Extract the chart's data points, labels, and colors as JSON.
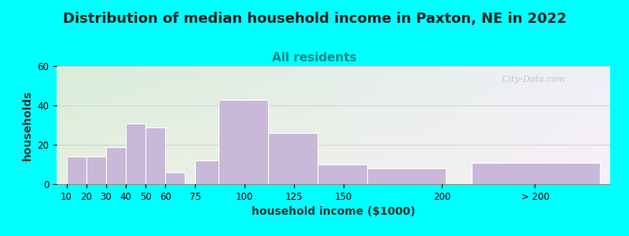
{
  "title": "Distribution of median household income in Paxton, NE in 2022",
  "subtitle": "All residents",
  "xlabel": "household income ($1000)",
  "ylabel": "households",
  "bar_labels": [
    "10",
    "20",
    "30",
    "40",
    "50",
    "60",
    "75",
    "100",
    "125",
    "150",
    "200",
    "> 200"
  ],
  "bar_values": [
    14,
    14,
    19,
    31,
    29,
    6,
    12,
    43,
    26,
    10,
    8,
    11
  ],
  "bar_color": "#c9b8d8",
  "bar_edge_color": "#ffffff",
  "ylim": [
    0,
    60
  ],
  "yticks": [
    0,
    20,
    40,
    60
  ],
  "bg_topleft": "#d8edd8",
  "bg_topright": "#f0f0f8",
  "bg_bottomleft": "#e8f0e0",
  "bg_bottomright": "#f8f0f8",
  "outer_background": "#00ffff",
  "title_fontsize": 13,
  "subtitle_fontsize": 11,
  "subtitle_color": "#008888",
  "axis_label_fontsize": 10,
  "tick_fontsize": 8.5,
  "watermark_text": " City-Data.com",
  "bar_lefts": [
    10,
    20,
    30,
    40,
    50,
    60,
    75,
    87,
    112,
    137,
    162,
    215
  ],
  "bar_widths": [
    10,
    10,
    10,
    10,
    10,
    10,
    12,
    25,
    25,
    25,
    40,
    65
  ],
  "tick_positions": [
    10,
    20,
    30,
    40,
    50,
    60,
    75,
    100,
    125,
    150,
    200,
    247
  ],
  "xlim": [
    5,
    285
  ]
}
